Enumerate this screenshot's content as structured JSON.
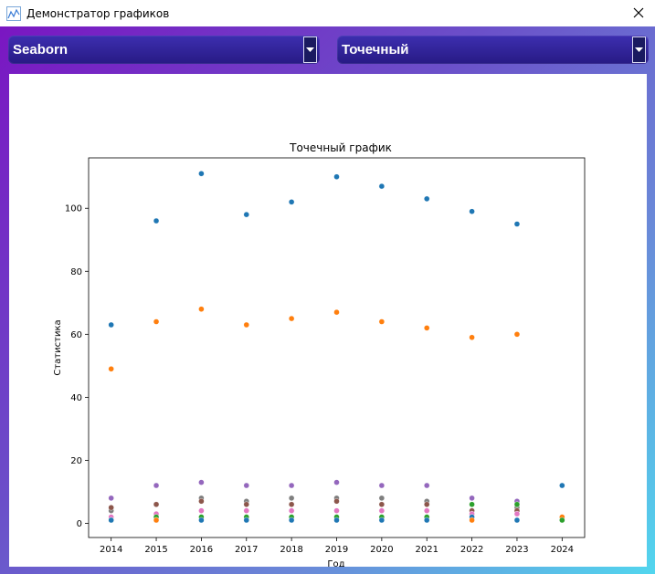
{
  "window": {
    "title": "Демонстратор графиков",
    "close_icon": "close-icon"
  },
  "controls": {
    "library": {
      "selected": "Seaborn"
    },
    "chart_type": {
      "selected": "Точечный"
    }
  },
  "colors": {
    "frame_gradient": [
      "#7a16c2",
      "#6a88d8",
      "#52d6ee"
    ],
    "combo_bg": "#2f2396"
  },
  "chart_data": {
    "type": "scatter",
    "title": "Точечный график",
    "xlabel": "Год",
    "ylabel": "Статистика",
    "x_ticks": [
      2014,
      2015,
      2016,
      2017,
      2018,
      2019,
      2020,
      2021,
      2022,
      2023,
      2024
    ],
    "y_ticks": [
      0,
      20,
      40,
      60,
      80,
      100
    ],
    "xlim": [
      2013.5,
      2024.5
    ],
    "ylim": [
      -4.5,
      116
    ],
    "series": [
      {
        "color": "#1f77b4",
        "x": [
          2014,
          2015,
          2016,
          2017,
          2018,
          2019,
          2020,
          2021,
          2022,
          2023,
          2024
        ],
        "y": [
          63,
          96,
          111,
          98,
          102,
          110,
          107,
          103,
          99,
          95,
          12
        ]
      },
      {
        "color": "#ff7f0e",
        "x": [
          2014,
          2015,
          2016,
          2017,
          2018,
          2019,
          2020,
          2021,
          2022,
          2023,
          2024
        ],
        "y": [
          49,
          64,
          68,
          63,
          65,
          67,
          64,
          62,
          59,
          60,
          2
        ]
      },
      {
        "color": "#9467bd",
        "x": [
          2014,
          2015,
          2016,
          2017,
          2018,
          2019,
          2020,
          2021,
          2022,
          2023
        ],
        "y": [
          8,
          12,
          13,
          12,
          12,
          13,
          12,
          12,
          8,
          7
        ]
      },
      {
        "color": "#7f7f7f",
        "x": [
          2014,
          2015,
          2016,
          2017,
          2018,
          2019,
          2020,
          2021,
          2022,
          2023
        ],
        "y": [
          4,
          6,
          8,
          7,
          8,
          8,
          8,
          7,
          4,
          5
        ]
      },
      {
        "color": "#8c564b",
        "x": [
          2014,
          2015,
          2016,
          2017,
          2018,
          2019,
          2020,
          2021,
          2022,
          2023
        ],
        "y": [
          5,
          6,
          7,
          6,
          6,
          7,
          6,
          6,
          4,
          4
        ]
      },
      {
        "color": "#e377c2",
        "x": [
          2014,
          2015,
          2016,
          2017,
          2018,
          2019,
          2020,
          2021,
          2022,
          2023
        ],
        "y": [
          2,
          3,
          4,
          4,
          4,
          4,
          4,
          4,
          3,
          3
        ]
      },
      {
        "color": "#2ca02c",
        "x": [
          2014,
          2015,
          2016,
          2017,
          2018,
          2019,
          2020,
          2021,
          2022,
          2023,
          2024
        ],
        "y": [
          1,
          2,
          2,
          2,
          2,
          2,
          2,
          2,
          6,
          6,
          1
        ]
      },
      {
        "color": "#1f77b4",
        "x": [
          2014,
          2015,
          2016,
          2017,
          2018,
          2019,
          2020,
          2021,
          2022,
          2023
        ],
        "y": [
          1,
          1,
          1,
          1,
          1,
          1,
          1,
          1,
          2,
          1
        ]
      },
      {
        "color": "#ff7f0e",
        "x": [
          2015,
          2022
        ],
        "y": [
          1,
          1
        ]
      }
    ]
  }
}
